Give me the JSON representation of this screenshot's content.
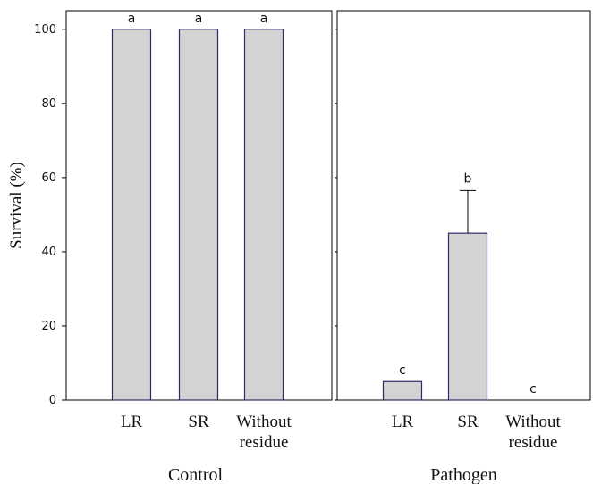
{
  "chart_data": {
    "type": "bar",
    "ylabel": "Survival (%)",
    "ylim": [
      0,
      105
    ],
    "yticks": [
      0,
      20,
      40,
      60,
      80,
      100
    ],
    "grid": false,
    "panels": [
      {
        "group": "Control",
        "categories": [
          [
            "LR"
          ],
          [
            "SR"
          ],
          [
            "Without",
            "residue"
          ]
        ],
        "values": [
          100,
          100,
          100
        ],
        "error": [
          0,
          0,
          0
        ],
        "letters": [
          "a",
          "a",
          "a"
        ]
      },
      {
        "group": "Pathogen",
        "categories": [
          [
            "LR"
          ],
          [
            "SR"
          ],
          [
            "Without",
            "residue"
          ]
        ],
        "values": [
          5,
          45,
          0
        ],
        "error": [
          0,
          11.5,
          0
        ],
        "letters": [
          "c",
          "b",
          "c"
        ]
      }
    ],
    "colors": {
      "bar_fill": "#d3d3d3",
      "bar_stroke": "#2b2b6b",
      "axis": "#000000"
    }
  }
}
